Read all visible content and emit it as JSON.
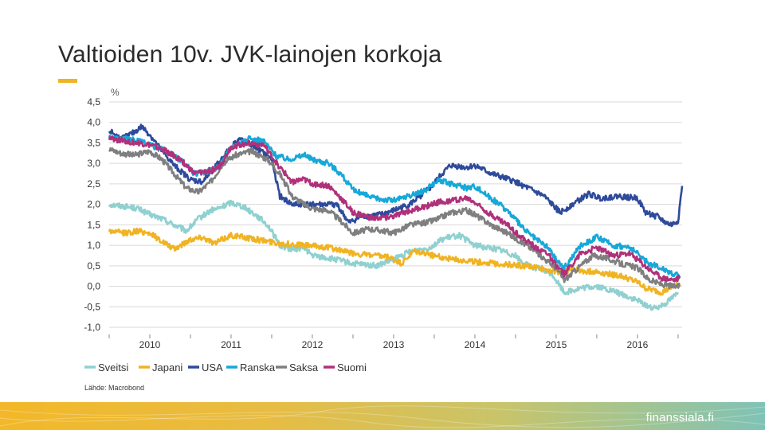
{
  "page": {
    "title": "Valtioiden 10v. JVK-lainojen korkoja",
    "source": "Lähde: Macrobond",
    "brand": "finanssiala.fi",
    "accent_color": "#f0b323"
  },
  "chart_data": {
    "type": "line",
    "title": "",
    "ylabel": "%",
    "xlabel": "",
    "ylim": [
      -1.0,
      4.5
    ],
    "xlim": [
      2009.5,
      2016.55
    ],
    "y_ticks": [
      4.5,
      4.0,
      3.5,
      3.0,
      2.5,
      2.0,
      1.5,
      1.0,
      0.5,
      0.0,
      -0.5,
      -1.0
    ],
    "y_tick_labels": [
      "4,5",
      "4,0",
      "3,5",
      "3,0",
      "2,5",
      "2,0",
      "1,5",
      "1,0",
      "0,5",
      "0,0",
      "-0,5",
      "-1,0"
    ],
    "x_ticks": [
      2010,
      2011,
      2012,
      2013,
      2014,
      2015,
      2016
    ],
    "x_tick_labels": [
      "2010",
      "2011",
      "2012",
      "2013",
      "2014",
      "2015",
      "2016"
    ],
    "year_boundaries": [
      2009.5,
      2010.0,
      2010.5,
      2011.0,
      2011.5,
      2012.0,
      2012.5,
      2013.0,
      2013.5,
      2014.0,
      2014.5,
      2015.0,
      2015.5,
      2016.0,
      2016.5
    ],
    "grid": true,
    "legend": "bottom",
    "series": [
      {
        "name": "Sveitsi",
        "color": "#8fd0d0",
        "x": [
          2009.5,
          2009.7,
          2009.85,
          2010.0,
          2010.15,
          2010.3,
          2010.45,
          2010.6,
          2010.75,
          2010.85,
          2011.0,
          2011.15,
          2011.3,
          2011.45,
          2011.6,
          2011.75,
          2011.9,
          2012.0,
          2012.3,
          2012.5,
          2012.8,
          2013.0,
          2013.2,
          2013.45,
          2013.6,
          2013.8,
          2014.0,
          2014.3,
          2014.5,
          2014.6,
          2014.75,
          2014.95,
          2015.05,
          2015.1,
          2015.3,
          2015.5,
          2015.75,
          2016.0,
          2016.2,
          2016.35,
          2016.5
        ],
        "y": [
          2.0,
          1.95,
          1.9,
          1.75,
          1.65,
          1.5,
          1.35,
          1.65,
          1.85,
          1.9,
          2.05,
          1.95,
          1.75,
          1.5,
          1.0,
          0.9,
          0.95,
          0.75,
          0.65,
          0.55,
          0.5,
          0.65,
          0.85,
          0.95,
          1.15,
          1.25,
          1.0,
          0.9,
          0.75,
          0.55,
          0.45,
          0.3,
          0.0,
          -0.15,
          -0.05,
          0.0,
          -0.15,
          -0.35,
          -0.55,
          -0.4,
          -0.15
        ]
      },
      {
        "name": "Japani",
        "color": "#f0b323",
        "x": [
          2009.5,
          2009.7,
          2009.85,
          2010.0,
          2010.15,
          2010.3,
          2010.5,
          2010.65,
          2010.8,
          2011.0,
          2011.3,
          2011.6,
          2011.9,
          2012.2,
          2012.5,
          2012.75,
          2012.95,
          2013.1,
          2013.25,
          2013.4,
          2013.6,
          2013.8,
          2014.0,
          2014.3,
          2014.6,
          2014.8,
          2015.0,
          2015.2,
          2015.5,
          2015.8,
          2016.0,
          2016.1,
          2016.3,
          2016.45,
          2016.52
        ],
        "y": [
          1.35,
          1.3,
          1.35,
          1.3,
          1.1,
          0.9,
          1.15,
          1.2,
          1.05,
          1.25,
          1.15,
          1.05,
          1.0,
          0.95,
          0.8,
          0.75,
          0.7,
          0.55,
          0.85,
          0.8,
          0.7,
          0.65,
          0.6,
          0.55,
          0.5,
          0.45,
          0.35,
          0.4,
          0.35,
          0.25,
          0.1,
          -0.05,
          -0.15,
          0.0,
          0.05
        ]
      },
      {
        "name": "USA",
        "color": "#2e4a9b",
        "x": [
          2009.5,
          2009.65,
          2009.8,
          2009.9,
          2010.0,
          2010.15,
          2010.3,
          2010.5,
          2010.65,
          2010.8,
          2011.0,
          2011.1,
          2011.3,
          2011.5,
          2011.6,
          2011.75,
          2012.0,
          2012.3,
          2012.45,
          2012.6,
          2012.85,
          2013.0,
          2013.2,
          2013.45,
          2013.6,
          2013.7,
          2013.9,
          2014.0,
          2014.2,
          2014.5,
          2014.7,
          2014.85,
          2015.05,
          2015.2,
          2015.4,
          2015.55,
          2015.75,
          2016.0,
          2016.1,
          2016.25,
          2016.35,
          2016.42,
          2016.5,
          2016.55
        ],
        "y": [
          3.8,
          3.6,
          3.75,
          3.9,
          3.7,
          3.3,
          2.95,
          2.6,
          2.55,
          2.9,
          3.4,
          3.6,
          3.4,
          3.1,
          2.2,
          2.0,
          2.0,
          2.0,
          1.55,
          1.7,
          1.75,
          1.85,
          2.0,
          2.4,
          2.75,
          2.95,
          2.9,
          2.95,
          2.75,
          2.55,
          2.35,
          2.2,
          1.8,
          2.0,
          2.25,
          2.15,
          2.2,
          2.15,
          1.8,
          1.7,
          1.55,
          1.5,
          1.6,
          2.45
        ]
      },
      {
        "name": "Ranska",
        "color": "#16a8d8",
        "x": [
          2009.5,
          2009.7,
          2009.85,
          2010.0,
          2010.2,
          2010.4,
          2010.55,
          2010.7,
          2010.85,
          2011.0,
          2011.2,
          2011.4,
          2011.55,
          2011.7,
          2011.9,
          2012.0,
          2012.2,
          2012.35,
          2012.5,
          2012.75,
          2013.0,
          2013.2,
          2013.4,
          2013.55,
          2013.7,
          2013.9,
          2014.0,
          2014.2,
          2014.4,
          2014.6,
          2014.75,
          2014.9,
          2015.0,
          2015.1,
          2015.3,
          2015.5,
          2015.7,
          2015.9,
          2016.0,
          2016.15,
          2016.3,
          2016.45,
          2016.52
        ],
        "y": [
          3.65,
          3.6,
          3.55,
          3.45,
          3.3,
          3.05,
          2.75,
          2.8,
          2.9,
          3.4,
          3.6,
          3.55,
          3.2,
          3.1,
          3.2,
          3.1,
          3.0,
          2.75,
          2.35,
          2.15,
          2.1,
          2.2,
          2.35,
          2.6,
          2.5,
          2.4,
          2.45,
          2.15,
          1.85,
          1.4,
          1.15,
          0.95,
          0.65,
          0.45,
          1.0,
          1.2,
          1.0,
          0.95,
          0.8,
          0.55,
          0.45,
          0.3,
          0.25
        ]
      },
      {
        "name": "Saksa",
        "color": "#7f7f7f",
        "x": [
          2009.5,
          2009.65,
          2009.8,
          2010.0,
          2010.15,
          2010.3,
          2010.45,
          2010.6,
          2010.75,
          2010.9,
          2011.05,
          2011.25,
          2011.45,
          2011.6,
          2011.75,
          2011.9,
          2012.0,
          2012.2,
          2012.35,
          2012.5,
          2012.7,
          2012.9,
          2013.0,
          2013.2,
          2013.4,
          2013.55,
          2013.7,
          2013.9,
          2014.0,
          2014.2,
          2014.4,
          2014.6,
          2014.75,
          2014.9,
          2015.0,
          2015.1,
          2015.3,
          2015.45,
          2015.6,
          2015.8,
          2016.0,
          2016.15,
          2016.3,
          2016.45,
          2016.52
        ],
        "y": [
          3.35,
          3.25,
          3.2,
          3.3,
          3.1,
          2.75,
          2.4,
          2.3,
          2.55,
          3.0,
          3.2,
          3.3,
          3.1,
          2.75,
          2.2,
          2.0,
          1.9,
          1.85,
          1.6,
          1.3,
          1.4,
          1.35,
          1.3,
          1.5,
          1.55,
          1.65,
          1.8,
          1.85,
          1.75,
          1.5,
          1.3,
          1.05,
          0.85,
          0.6,
          0.45,
          0.15,
          0.5,
          0.75,
          0.7,
          0.55,
          0.45,
          0.15,
          0.05,
          0.0,
          0.0
        ]
      },
      {
        "name": "Suomi",
        "color": "#b0307a",
        "x": [
          2009.5,
          2009.7,
          2009.85,
          2010.0,
          2010.2,
          2010.4,
          2010.55,
          2010.7,
          2010.85,
          2011.0,
          2011.2,
          2011.4,
          2011.6,
          2011.75,
          2011.9,
          2012.0,
          2012.2,
          2012.35,
          2012.5,
          2012.75,
          2013.0,
          2013.2,
          2013.4,
          2013.55,
          2013.7,
          2013.9,
          2014.0,
          2014.2,
          2014.4,
          2014.6,
          2014.75,
          2014.9,
          2015.0,
          2015.1,
          2015.3,
          2015.5,
          2015.7,
          2015.9,
          2016.0,
          2016.15,
          2016.3,
          2016.45,
          2016.52
        ],
        "y": [
          3.6,
          3.55,
          3.5,
          3.45,
          3.3,
          3.05,
          2.75,
          2.8,
          2.9,
          3.4,
          3.5,
          3.45,
          2.9,
          2.55,
          2.6,
          2.5,
          2.45,
          2.15,
          1.8,
          1.65,
          1.7,
          1.85,
          1.95,
          2.05,
          2.1,
          2.15,
          2.05,
          1.75,
          1.5,
          1.15,
          0.95,
          0.8,
          0.5,
          0.3,
          0.8,
          0.95,
          0.75,
          0.8,
          0.65,
          0.4,
          0.2,
          0.15,
          0.2
        ]
      }
    ]
  }
}
